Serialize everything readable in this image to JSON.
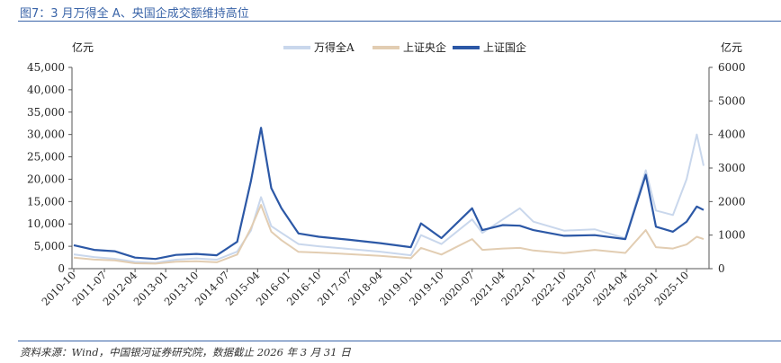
{
  "figure": {
    "title": "图7：3 月万得全 A、央国企成交额维持高位",
    "source": "资料来源：Wind，中国银河证券研究院，数据截止 2026 年 3 月 31 日"
  },
  "chart_data": {
    "type": "line",
    "left_axis_unit": "亿元",
    "right_axis_unit": "亿元",
    "left_axis": {
      "range": [
        0,
        45000
      ],
      "ticks": [
        "0",
        "5,000",
        "10,000",
        "15,000",
        "20,000",
        "25,000",
        "30,000",
        "35,000",
        "40,000",
        "45,000"
      ]
    },
    "right_axis": {
      "range": [
        0,
        6000
      ],
      "ticks": [
        "0",
        "1000",
        "2000",
        "3000",
        "4000",
        "5000",
        "6000"
      ]
    },
    "x_tick_labels": [
      "2010-10",
      "2011-07",
      "2012-04",
      "2013-01",
      "2013-10",
      "2014-07",
      "2015-04",
      "2016-01",
      "2016-10",
      "2017-07",
      "2018-04",
      "2019-01",
      "2019-10",
      "2020-07",
      "2021-04",
      "2022-01",
      "2022-10",
      "2023-07",
      "2024-04",
      "2025-01",
      "2025-10"
    ],
    "x": [
      "2010-10",
      "2011-04",
      "2011-10",
      "2012-04",
      "2012-10",
      "2013-04",
      "2013-10",
      "2014-04",
      "2014-10",
      "2015-02",
      "2015-05",
      "2015-08",
      "2015-11",
      "2016-04",
      "2016-10",
      "2017-07",
      "2018-04",
      "2019-01",
      "2019-04",
      "2019-10",
      "2020-07",
      "2020-10",
      "2021-04",
      "2021-09",
      "2022-01",
      "2022-10",
      "2023-07",
      "2024-04",
      "2024-10",
      "2025-01",
      "2025-06",
      "2025-10",
      "2026-01",
      "2026-03"
    ],
    "legend_position": "top-center",
    "grid": false,
    "series": [
      {
        "name": "万得全A",
        "axis": "left",
        "color": "#c9d7ec",
        "values": [
          3200,
          2600,
          2200,
          1500,
          1300,
          2000,
          2300,
          2000,
          3800,
          8500,
          16000,
          9500,
          8000,
          5500,
          5000,
          4400,
          3800,
          3000,
          7500,
          5500,
          11000,
          8000,
          11000,
          13500,
          10500,
          8500,
          8800,
          6800,
          22000,
          13000,
          12000,
          20000,
          30000,
          23000
        ]
      },
      {
        "name": "上证央企",
        "axis": "right",
        "color": "#e2cdb2",
        "values": [
          330,
          270,
          250,
          160,
          150,
          210,
          220,
          190,
          420,
          1200,
          1900,
          1100,
          850,
          500,
          480,
          430,
          380,
          310,
          620,
          420,
          880,
          560,
          600,
          620,
          540,
          460,
          560,
          470,
          1150,
          640,
          600,
          720,
          950,
          880
        ]
      },
      {
        "name": "上证国企",
        "axis": "right",
        "color": "#2c58a6",
        "values": [
          700,
          560,
          520,
          330,
          290,
          410,
          440,
          400,
          800,
          2600,
          4200,
          2400,
          1800,
          1050,
          950,
          860,
          760,
          640,
          1350,
          910,
          1800,
          1150,
          1300,
          1280,
          1150,
          980,
          1000,
          880,
          2800,
          1250,
          1100,
          1400,
          1850,
          1750
        ]
      }
    ]
  }
}
